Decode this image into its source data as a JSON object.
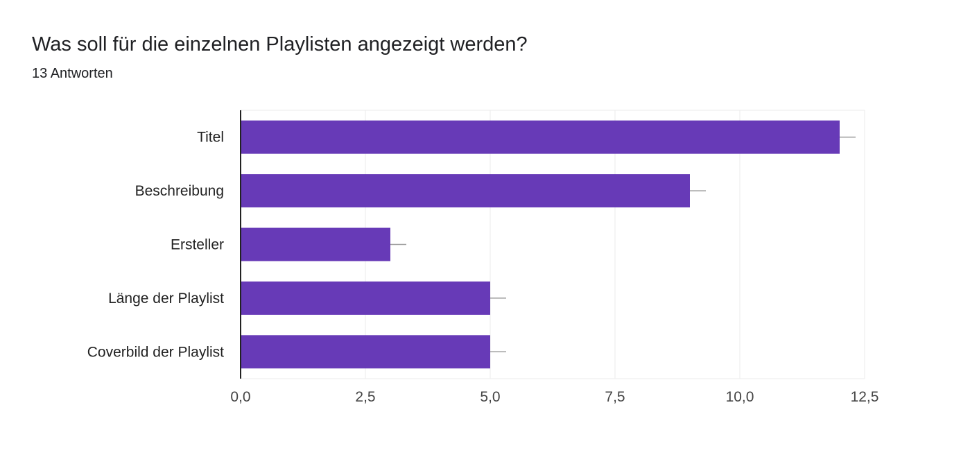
{
  "question": {
    "title": "Was soll für die einzelnen Playlisten angezeigt werden?",
    "responses": "13 Antworten"
  },
  "chart_data": {
    "type": "bar",
    "orientation": "horizontal",
    "categories": [
      "Titel",
      "Beschreibung",
      "Ersteller",
      "Länge der Playlist",
      "Coverbild der Playlist"
    ],
    "values": [
      12,
      9,
      3,
      5,
      5
    ],
    "xlim": [
      0,
      12.5
    ],
    "x_ticks": [
      "0,0",
      "2,5",
      "5,0",
      "7,5",
      "10,0",
      "12,5"
    ],
    "grid": true,
    "legend": "none",
    "bar_color": "#673ab7",
    "error_bar_color": "#9e9e9e"
  }
}
